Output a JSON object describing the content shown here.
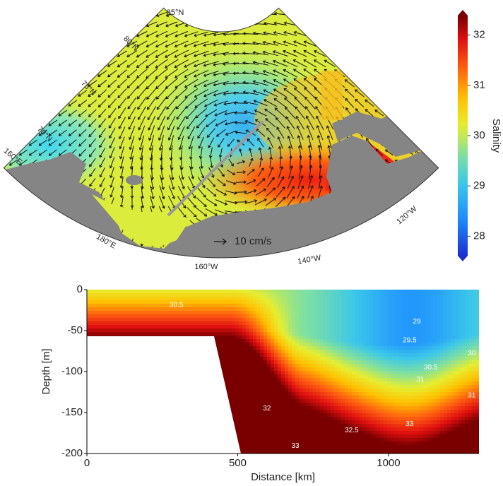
{
  "chart_data": [
    {
      "type": "map",
      "lat_labels": [
        "85°N",
        "80°N",
        "75°N",
        "70°N"
      ],
      "lon_labels": [
        "160°E",
        "180°E",
        "160°W",
        "140°W",
        "120°W"
      ],
      "scale_label": "10 cm/s",
      "colorbar": {
        "label": "Salinity",
        "ylim": [
          27.5,
          32.5
        ],
        "yticks": [
          28,
          29,
          30,
          31,
          32
        ]
      }
    },
    {
      "type": "contour",
      "xlabel": "Distance [km]",
      "ylabel": "Depth [m]",
      "xlim": [
        0,
        1300
      ],
      "ylim": [
        -200,
        0
      ],
      "xticks": [
        0,
        500,
        1000
      ],
      "yticks": [
        0,
        -50,
        -100,
        -150,
        -200
      ],
      "contour_labels": [
        {
          "value": 30.5,
          "x": 297,
          "y": -19
        },
        {
          "value": 29,
          "x": 1094,
          "y": -39
        },
        {
          "value": 29.5,
          "x": 1070,
          "y": -62
        },
        {
          "value": 30,
          "x": 1276,
          "y": -78
        },
        {
          "value": 30.5,
          "x": 1140,
          "y": -95
        },
        {
          "value": 31,
          "x": 1105,
          "y": -110
        },
        {
          "value": 31,
          "x": 1276,
          "y": -129
        },
        {
          "value": 32,
          "x": 597,
          "y": -145
        },
        {
          "value": 32.5,
          "x": 878,
          "y": -172
        },
        {
          "value": 33,
          "x": 691,
          "y": -191
        },
        {
          "value": 33,
          "x": 1070,
          "y": -164
        }
      ]
    }
  ]
}
